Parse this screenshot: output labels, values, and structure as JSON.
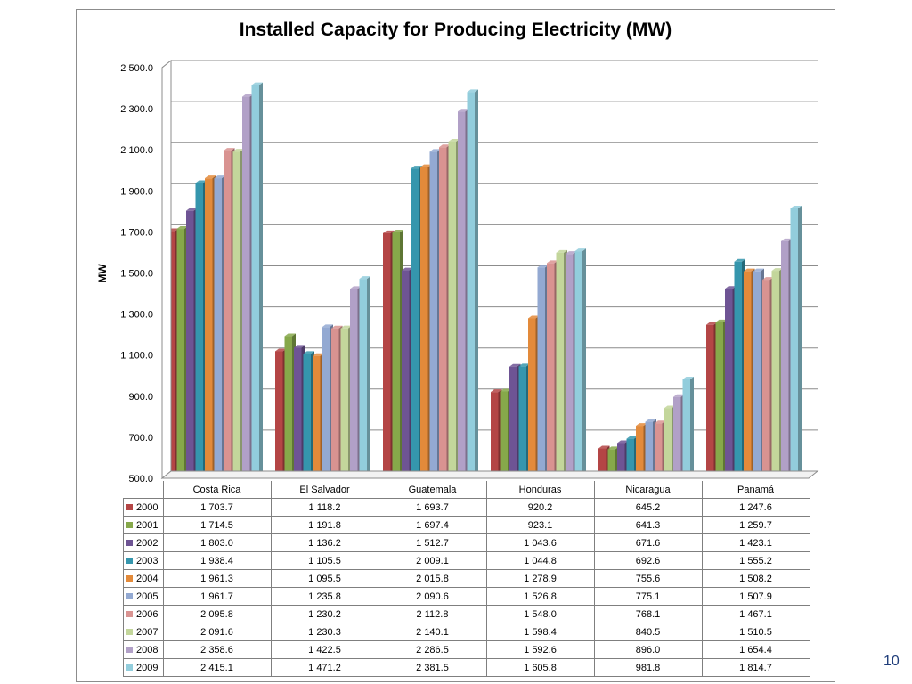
{
  "page": {
    "number": "10"
  },
  "chart_data": {
    "type": "bar",
    "title": "Installed Capacity for Producing Electricity (MW)",
    "xlabel": "",
    "ylabel": "MW",
    "ylim": [
      500,
      2500
    ],
    "yticks": [
      "500.0",
      "700.0",
      "900.0",
      "1 100.0",
      "1 300.0",
      "1 500.0",
      "1 700.0",
      "1 900.0",
      "2 100.0",
      "2 300.0",
      "2 500.0"
    ],
    "ytick_values": [
      500,
      700,
      900,
      1100,
      1300,
      1500,
      1700,
      1900,
      2100,
      2300,
      2500
    ],
    "grid": true,
    "legend": "data table below chart",
    "categories": [
      "Costa Rica",
      "El Salvador",
      "Guatemala",
      "Honduras",
      "Nicaragua",
      "Panamá"
    ],
    "series": [
      {
        "name": "2000",
        "color": "#b44545",
        "values": [
          1703.7,
          1118.2,
          1693.7,
          920.2,
          645.2,
          1247.6
        ],
        "labels": [
          "1 703.7",
          "1 118.2",
          "1 693.7",
          "920.2",
          "645.2",
          "1 247.6"
        ]
      },
      {
        "name": "2001",
        "color": "#86a84a",
        "values": [
          1714.5,
          1191.8,
          1697.4,
          923.1,
          641.3,
          1259.7
        ],
        "labels": [
          "1 714.5",
          "1 191.8",
          "1 697.4",
          "923.1",
          "641.3",
          "1 259.7"
        ]
      },
      {
        "name": "2002",
        "color": "#6e5494",
        "values": [
          1803.0,
          1136.2,
          1512.7,
          1043.6,
          671.6,
          1423.1
        ],
        "labels": [
          "1 803.0",
          "1 136.2",
          "1 512.7",
          "1 043.6",
          "671.6",
          "1 423.1"
        ]
      },
      {
        "name": "2003",
        "color": "#3596ad",
        "values": [
          1938.4,
          1105.5,
          2009.1,
          1044.8,
          692.6,
          1555.2
        ],
        "labels": [
          "1 938.4",
          "1 105.5",
          "2 009.1",
          "1 044.8",
          "692.6",
          "1 555.2"
        ]
      },
      {
        "name": "2004",
        "color": "#e38a3a",
        "values": [
          1961.3,
          1095.5,
          2015.8,
          1278.9,
          755.6,
          1508.2
        ],
        "labels": [
          "1 961.3",
          "1 095.5",
          "2 015.8",
          "1 278.9",
          "755.6",
          "1 508.2"
        ]
      },
      {
        "name": "2005",
        "color": "#93a9d2",
        "values": [
          1961.7,
          1235.8,
          2090.6,
          1526.8,
          775.1,
          1507.9
        ],
        "labels": [
          "1 961.7",
          "1 235.8",
          "2 090.6",
          "1 526.8",
          "775.1",
          "1 507.9"
        ]
      },
      {
        "name": "2006",
        "color": "#d99391",
        "values": [
          2095.8,
          1230.2,
          2112.8,
          1548.0,
          768.1,
          1467.1
        ],
        "labels": [
          "2 095.8",
          "1 230.2",
          "2 112.8",
          "1 548.0",
          "768.1",
          "1 467.1"
        ]
      },
      {
        "name": "2007",
        "color": "#c3d69b",
        "values": [
          2091.6,
          1230.3,
          2140.1,
          1598.4,
          840.5,
          1510.5
        ],
        "labels": [
          "2 091.6",
          "1 230.3",
          "2 140.1",
          "1 598.4",
          "840.5",
          "1 510.5"
        ]
      },
      {
        "name": "2008",
        "color": "#b1a0c7",
        "values": [
          2358.6,
          1422.5,
          2286.5,
          1592.6,
          896.0,
          1654.4
        ],
        "labels": [
          "2 358.6",
          "1 422.5",
          "2 286.5",
          "1 592.6",
          "896.0",
          "1 654.4"
        ]
      },
      {
        "name": "2009",
        "color": "#92cddc",
        "values": [
          2415.1,
          1471.2,
          2381.5,
          1605.8,
          981.8,
          1814.7
        ],
        "labels": [
          "2 415.1",
          "1 471.2",
          "2 381.5",
          "1 605.8",
          "981.8",
          "1 814.7"
        ]
      }
    ]
  }
}
